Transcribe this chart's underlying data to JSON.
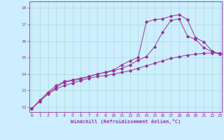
{
  "xlabel": "Windchill (Refroidissement éolien,°C)",
  "bg_color": "#cceeff",
  "grid_color": "#aaddcc",
  "line_color": "#993399",
  "xlim": [
    -0.3,
    23.2
  ],
  "ylim": [
    11.7,
    18.4
  ],
  "yticks": [
    12,
    13,
    14,
    15,
    16,
    17,
    18
  ],
  "xticks": [
    0,
    1,
    2,
    3,
    4,
    5,
    6,
    7,
    8,
    9,
    10,
    11,
    12,
    13,
    14,
    15,
    16,
    17,
    18,
    19,
    20,
    21,
    22,
    23
  ],
  "line1_x": [
    0,
    1,
    2,
    3,
    4,
    5,
    6,
    7,
    8,
    9,
    10,
    11,
    12,
    13,
    14,
    15,
    16,
    17,
    18,
    19,
    20,
    21,
    22,
    23
  ],
  "line1_y": [
    11.9,
    12.35,
    12.8,
    13.1,
    13.3,
    13.45,
    13.6,
    13.75,
    13.85,
    13.9,
    14.0,
    14.1,
    14.2,
    14.35,
    14.5,
    14.65,
    14.8,
    14.95,
    15.05,
    15.15,
    15.2,
    15.25,
    15.27,
    15.28
  ],
  "line2_x": [
    0,
    1,
    2,
    3,
    4,
    5,
    6,
    7,
    8,
    9,
    10,
    11,
    12,
    13,
    14,
    15,
    16,
    17,
    18,
    19,
    20,
    21,
    22,
    23
  ],
  "line2_y": [
    11.9,
    12.4,
    12.9,
    13.3,
    13.55,
    13.65,
    13.75,
    13.85,
    14.0,
    14.1,
    14.2,
    14.35,
    14.55,
    14.85,
    15.05,
    15.65,
    16.55,
    17.25,
    17.35,
    16.3,
    16.1,
    15.6,
    15.35,
    15.2
  ],
  "line3_x": [
    0,
    1,
    2,
    3,
    4,
    5,
    6,
    7,
    8,
    9,
    10,
    11,
    12,
    13,
    14,
    15,
    16,
    17,
    18,
    19,
    20,
    21,
    22,
    23
  ],
  "line3_y": [
    11.9,
    12.35,
    12.8,
    13.2,
    13.5,
    13.6,
    13.7,
    13.85,
    14.0,
    14.1,
    14.25,
    14.55,
    14.8,
    15.0,
    17.15,
    17.3,
    17.35,
    17.5,
    17.6,
    17.3,
    16.2,
    15.95,
    15.4,
    15.2
  ]
}
